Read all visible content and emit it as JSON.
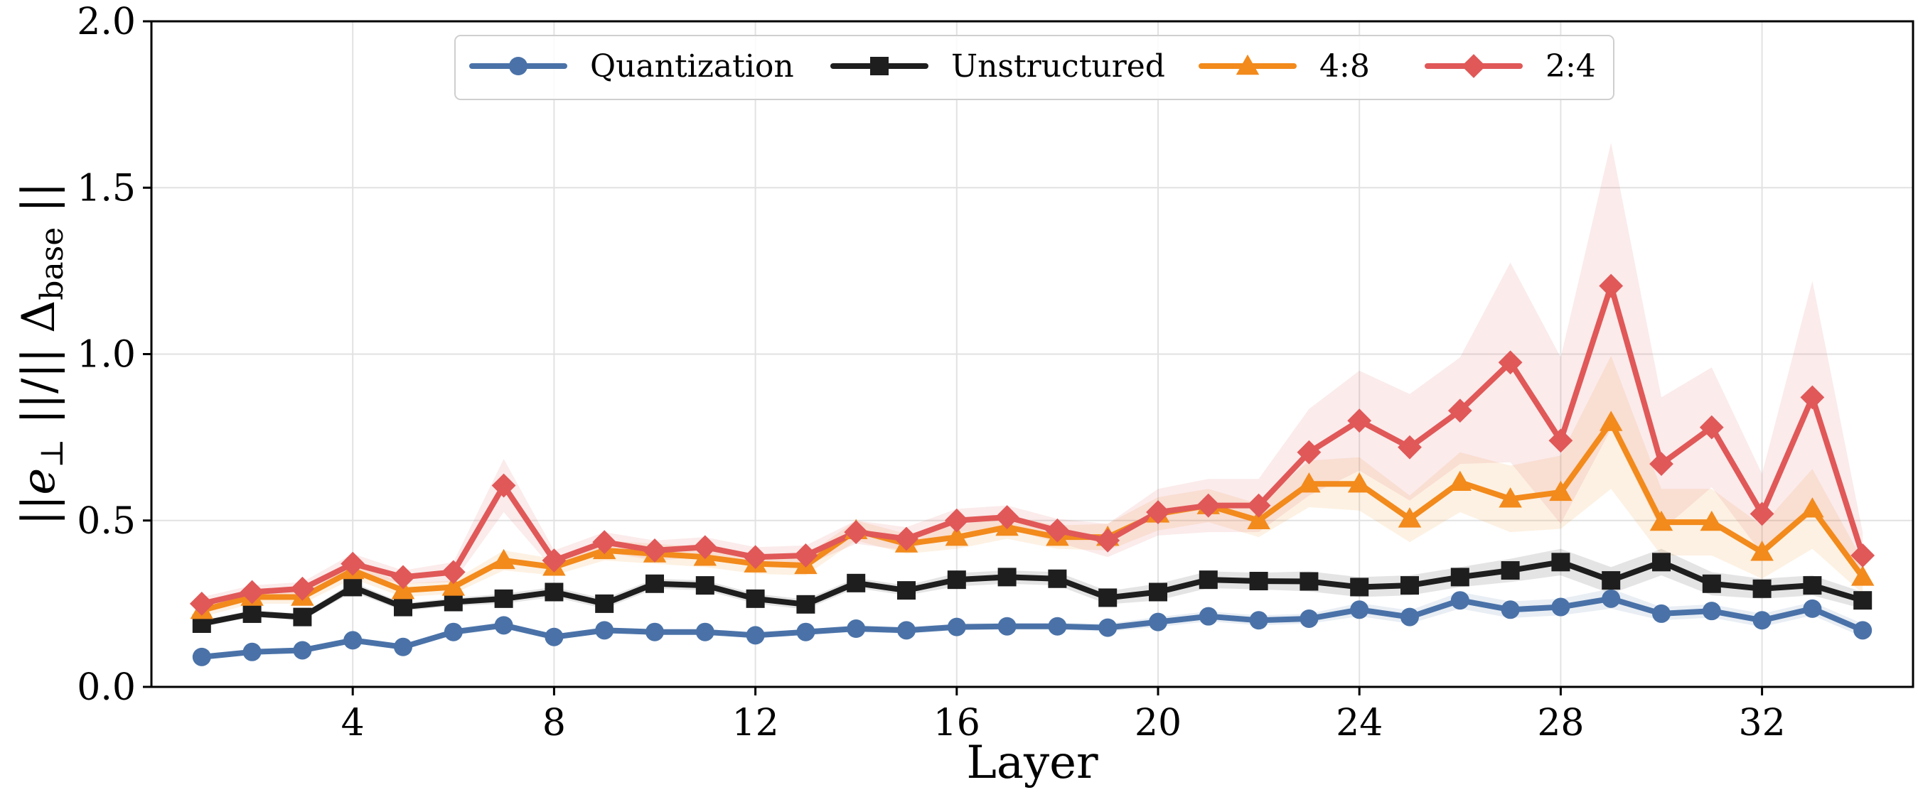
{
  "chart_data": {
    "type": "line",
    "xlabel": "Layer",
    "ylabel_parts": {
      "prefix": "||",
      "e": "e",
      "perp": "⊥",
      "middle": " ||/|| Δ",
      "sub": "base",
      "suffix": " ||"
    },
    "xlim": [
      0,
      35
    ],
    "ylim": [
      0.0,
      2.0
    ],
    "xticks": [
      4,
      8,
      12,
      16,
      20,
      24,
      28,
      32
    ],
    "yticks": [
      0.0,
      0.5,
      1.0,
      1.5,
      2.0
    ],
    "xtick_labels": [
      "4",
      "8",
      "12",
      "16",
      "20",
      "24",
      "28",
      "32"
    ],
    "ytick_labels": [
      "0.0",
      "0.5",
      "1.0",
      "1.5",
      "2.0"
    ],
    "grid": true,
    "legend_position": "top-center",
    "x": [
      1,
      2,
      3,
      4,
      5,
      6,
      7,
      8,
      9,
      10,
      11,
      12,
      13,
      14,
      15,
      16,
      17,
      18,
      19,
      20,
      21,
      22,
      23,
      24,
      25,
      26,
      27,
      28,
      29,
      30,
      31,
      32,
      33,
      34
    ],
    "series": [
      {
        "name": "Quantization",
        "color": "#4a72a8",
        "marker": "circle",
        "values": [
          0.09,
          0.105,
          0.11,
          0.14,
          0.12,
          0.165,
          0.185,
          0.15,
          0.17,
          0.165,
          0.165,
          0.155,
          0.165,
          0.175,
          0.17,
          0.18,
          0.182,
          0.182,
          0.178,
          0.195,
          0.212,
          0.2,
          0.205,
          0.232,
          0.21,
          0.26,
          0.232,
          0.24,
          0.265,
          0.22,
          0.228,
          0.2,
          0.235,
          0.17
        ],
        "band": [
          0.005,
          0.005,
          0.005,
          0.008,
          0.006,
          0.01,
          0.01,
          0.008,
          0.008,
          0.008,
          0.008,
          0.008,
          0.008,
          0.01,
          0.01,
          0.01,
          0.01,
          0.01,
          0.012,
          0.015,
          0.015,
          0.015,
          0.015,
          0.02,
          0.02,
          0.025,
          0.025,
          0.025,
          0.03,
          0.02,
          0.02,
          0.02,
          0.02,
          0.02
        ]
      },
      {
        "name": "Unstructured",
        "color": "#1e1e1e",
        "marker": "square",
        "values": [
          0.19,
          0.22,
          0.21,
          0.3,
          0.24,
          0.255,
          0.265,
          0.285,
          0.25,
          0.31,
          0.305,
          0.265,
          0.248,
          0.312,
          0.29,
          0.322,
          0.33,
          0.325,
          0.268,
          0.285,
          0.322,
          0.318,
          0.317,
          0.3,
          0.305,
          0.33,
          0.35,
          0.375,
          0.32,
          0.375,
          0.31,
          0.295,
          0.305,
          0.26
        ],
        "band": [
          0.01,
          0.01,
          0.01,
          0.015,
          0.012,
          0.012,
          0.015,
          0.015,
          0.015,
          0.015,
          0.015,
          0.015,
          0.015,
          0.015,
          0.015,
          0.02,
          0.02,
          0.02,
          0.02,
          0.025,
          0.025,
          0.025,
          0.03,
          0.03,
          0.03,
          0.03,
          0.035,
          0.04,
          0.04,
          0.04,
          0.035,
          0.03,
          0.03,
          0.025
        ]
      },
      {
        "name": "4:8",
        "color": "#f28a1c",
        "marker": "triangle",
        "values": [
          0.23,
          0.27,
          0.27,
          0.35,
          0.29,
          0.3,
          0.38,
          0.36,
          0.41,
          0.4,
          0.39,
          0.37,
          0.365,
          0.47,
          0.43,
          0.45,
          0.48,
          0.45,
          0.45,
          0.52,
          0.545,
          0.5,
          0.61,
          0.61,
          0.505,
          0.615,
          0.565,
          0.585,
          0.795,
          0.495,
          0.495,
          0.405,
          0.535,
          0.33
        ],
        "band": [
          0.02,
          0.02,
          0.02,
          0.025,
          0.02,
          0.02,
          0.03,
          0.025,
          0.03,
          0.03,
          0.03,
          0.03,
          0.03,
          0.03,
          0.03,
          0.035,
          0.035,
          0.035,
          0.04,
          0.05,
          0.05,
          0.05,
          0.07,
          0.08,
          0.07,
          0.09,
          0.1,
          0.11,
          0.2,
          0.1,
          0.1,
          0.08,
          0.12,
          0.05
        ]
      },
      {
        "name": "2:4",
        "color": "#e05858",
        "marker": "diamond",
        "values": [
          0.25,
          0.285,
          0.295,
          0.37,
          0.33,
          0.345,
          0.605,
          0.38,
          0.435,
          0.41,
          0.42,
          0.39,
          0.395,
          0.465,
          0.445,
          0.5,
          0.51,
          0.47,
          0.44,
          0.525,
          0.545,
          0.545,
          0.705,
          0.8,
          0.72,
          0.83,
          0.975,
          0.74,
          1.205,
          0.67,
          0.78,
          0.52,
          0.87,
          0.395
        ],
        "band": [
          0.02,
          0.02,
          0.02,
          0.03,
          0.02,
          0.03,
          0.08,
          0.03,
          0.03,
          0.03,
          0.03,
          0.03,
          0.03,
          0.035,
          0.035,
          0.035,
          0.035,
          0.035,
          0.05,
          0.07,
          0.08,
          0.08,
          0.13,
          0.15,
          0.16,
          0.16,
          0.3,
          0.25,
          0.43,
          0.2,
          0.18,
          0.12,
          0.35,
          0.07
        ]
      }
    ]
  }
}
